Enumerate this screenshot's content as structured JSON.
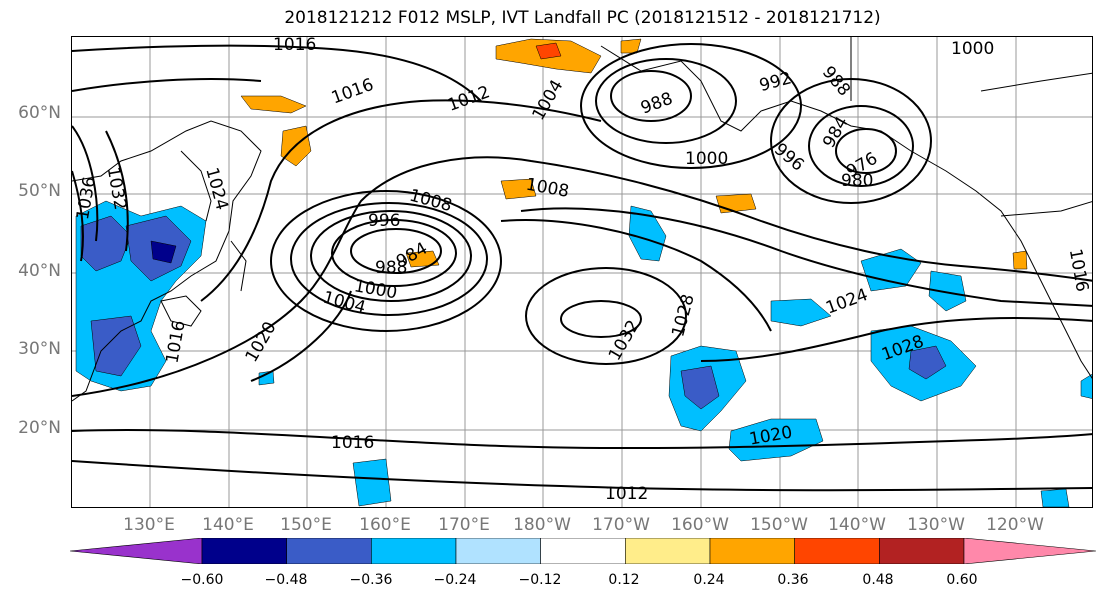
{
  "title": "2018121212 F012 MSLP, IVT Landfall PC (2018121512 - 2018121712)",
  "lat_labels": [
    "60°N",
    "50°N",
    "40°N",
    "30°N",
    "20°N"
  ],
  "lon_labels": [
    "130°E",
    "140°E",
    "150°E",
    "160°E",
    "170°E",
    "180°W",
    "170°W",
    "160°W",
    "150°W",
    "140°W",
    "130°W",
    "120°W"
  ],
  "colorbar": {
    "ticks": [
      "−0.60",
      "−0.48",
      "−0.36",
      "−0.24",
      "−0.12",
      "0.12",
      "0.24",
      "0.36",
      "0.48",
      "0.60"
    ],
    "colors": [
      "#9932cc",
      "#00008b",
      "#3a5cc7",
      "#00bfff",
      "#b0e2ff",
      "#ffffff",
      "#ffed8a",
      "#ffa500",
      "#ff4500",
      "#b22222",
      "#ff88aa"
    ]
  },
  "contour_labels": [
    "1016",
    "1016",
    "1012",
    "1004",
    "988",
    "992",
    "988",
    "984",
    "1000",
    "996",
    "976",
    "980",
    "1000",
    "1008",
    "1008",
    "996",
    "984",
    "988",
    "1000",
    "1004",
    "1032",
    "1024",
    "1036",
    "1020",
    "1016",
    "1032",
    "1028",
    "1024",
    "1028",
    "1020",
    "1016",
    "1012",
    "1016"
  ]
}
